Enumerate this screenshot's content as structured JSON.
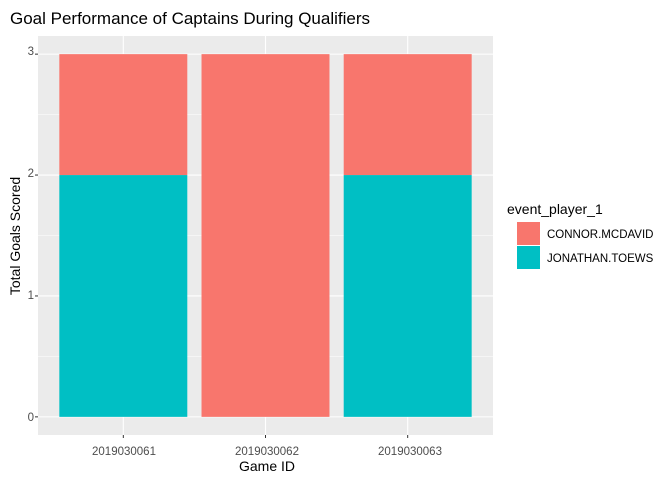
{
  "chart_data": {
    "type": "bar",
    "stacked": true,
    "title": "Goal Performance of Captains During Qualifiers",
    "xlabel": "Game ID",
    "ylabel": "Total Goals Scored",
    "categories": [
      "2019030061",
      "2019030062",
      "2019030063"
    ],
    "series": [
      {
        "name": "CONNOR.MCDAVID",
        "values": [
          1,
          3,
          1
        ],
        "color": "#F8766D"
      },
      {
        "name": "JONATHAN.TOEWS",
        "values": [
          2,
          0,
          2
        ],
        "color": "#00BFC4"
      }
    ],
    "ylim": [
      -0.15,
      3.15
    ],
    "yticks": [
      "0",
      "1",
      "2",
      "3"
    ],
    "legend_title": "event_player_1",
    "legend_position": "right",
    "grid": true,
    "panel_background": "#EBEBEB",
    "grid_color": "#FFFFFF"
  }
}
